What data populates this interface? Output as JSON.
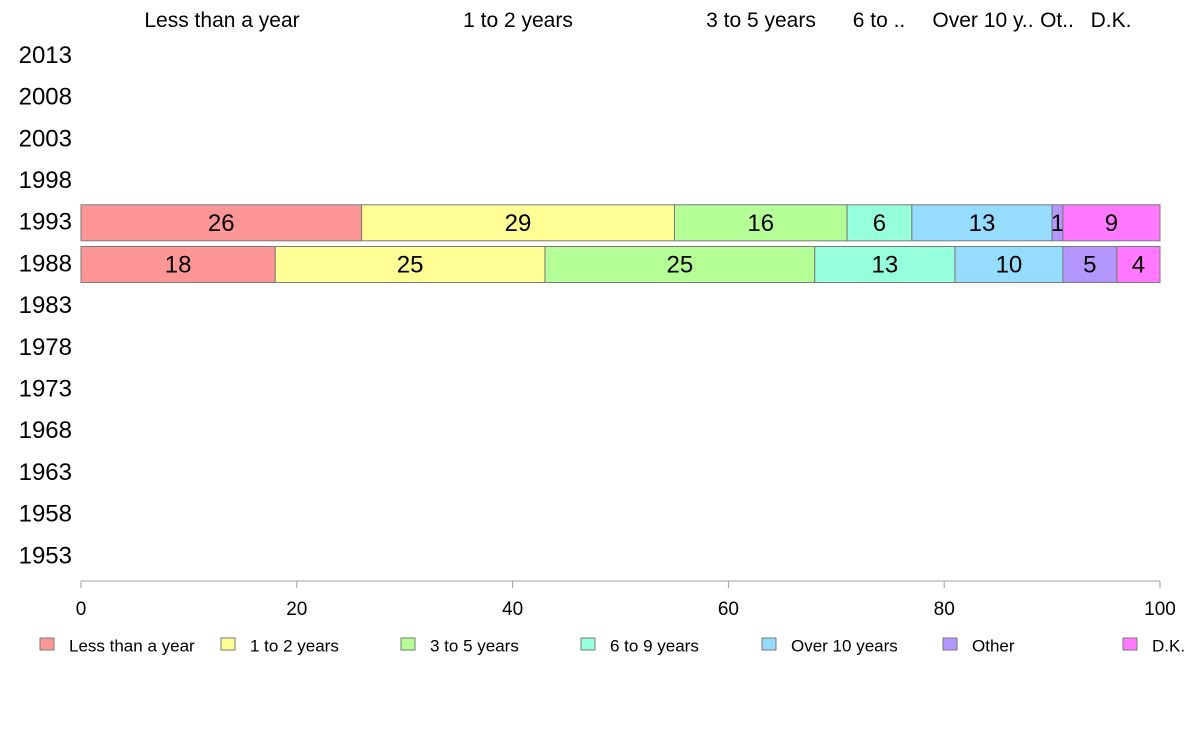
{
  "chart_data": {
    "type": "bar",
    "orientation": "horizontal",
    "stacked": true,
    "categories": [
      "2013",
      "2008",
      "2003",
      "1998",
      "1993",
      "1988",
      "1983",
      "1978",
      "1973",
      "1968",
      "1963",
      "1958",
      "1953"
    ],
    "top_labels": [
      "Less than a year",
      "1 to 2 years",
      "3 to 5 years",
      "6 to ..",
      "Over 10 y..",
      "Ot..",
      "D.K."
    ],
    "series": [
      {
        "name": "Less than a year",
        "color": "#ff9696",
        "values": [
          null,
          null,
          null,
          null,
          26,
          18,
          null,
          null,
          null,
          null,
          null,
          null,
          null
        ]
      },
      {
        "name": "1 to 2 years",
        "color": "#ffff96",
        "values": [
          null,
          null,
          null,
          null,
          29,
          25,
          null,
          null,
          null,
          null,
          null,
          null,
          null
        ]
      },
      {
        "name": "3 to 5 years",
        "color": "#b4ff96",
        "values": [
          null,
          null,
          null,
          null,
          16,
          25,
          null,
          null,
          null,
          null,
          null,
          null,
          null
        ]
      },
      {
        "name": "6 to 9 years",
        "color": "#96ffdc",
        "values": [
          null,
          null,
          null,
          null,
          6,
          13,
          null,
          null,
          null,
          null,
          null,
          null,
          null
        ]
      },
      {
        "name": "Over 10 years",
        "color": "#96dcff",
        "values": [
          null,
          null,
          null,
          null,
          13,
          10,
          null,
          null,
          null,
          null,
          null,
          null,
          null
        ]
      },
      {
        "name": "Other",
        "color": "#b496ff",
        "values": [
          null,
          null,
          null,
          null,
          1,
          5,
          null,
          null,
          null,
          null,
          null,
          null,
          null
        ]
      },
      {
        "name": "D.K.",
        "color": "#ff78ff",
        "values": [
          null,
          null,
          null,
          null,
          9,
          4,
          null,
          null,
          null,
          null,
          null,
          null,
          null
        ]
      }
    ],
    "xlim": [
      0,
      100
    ],
    "xticks": [
      "0",
      "20",
      "40",
      "60",
      "80",
      "100"
    ],
    "grid": false,
    "legend_position": "bottom"
  }
}
